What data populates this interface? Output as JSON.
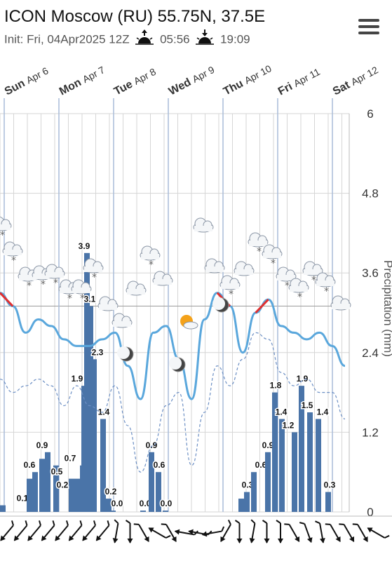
{
  "header": {
    "title": "ICON Moscow (RU) 55.75N, 37.5E",
    "init": "Init: Fri, 04Apr2025 12Z",
    "sunrise": "05:56",
    "sunset": "19:09",
    "sunrise_icon": "sunrise-icon",
    "sunset_icon": "sunset-icon",
    "menu_icon": "hamburger-menu-icon"
  },
  "colors": {
    "precip_bar": "#4a74a8",
    "temp_line": "#5aa7dc",
    "temp_warm": "#e03030",
    "dewpoint_line": "#6c8fc4",
    "grid": "#d6d6d6",
    "day_line": "#a9bcd8"
  },
  "chart_data": {
    "type": "bar",
    "days": [
      {
        "day": "Sun",
        "date": "Apr 6"
      },
      {
        "day": "Mon",
        "date": "Apr 7"
      },
      {
        "day": "Tue",
        "date": "Apr 8"
      },
      {
        "day": "Wed",
        "date": "Apr 9"
      },
      {
        "day": "Thu",
        "date": "Apr 10"
      },
      {
        "day": "Fri",
        "date": "Apr 11"
      },
      {
        "day": "Sat",
        "date": "Apr 12"
      }
    ],
    "ylabel": "Precipitation (mm)",
    "y_ticks": [
      "0",
      "1.2",
      "2.4",
      "3.6",
      "4.8",
      "6"
    ],
    "ylim": [
      0,
      6
    ],
    "precip": [
      {
        "label": "0.1",
        "values": [
          0.1
        ]
      },
      {
        "label": "0.6",
        "values": [
          0.5,
          0.6
        ]
      },
      {
        "label": "0.9",
        "values": [
          0.8,
          0.9
        ]
      },
      {
        "label": "0.7",
        "values": [
          0.7
        ]
      },
      {
        "label": "0.5",
        "values": [
          0.5
        ]
      },
      {
        "label": "0.2",
        "values": [
          0.3,
          0.2
        ]
      },
      {
        "label": "0.7",
        "values": [
          0.5,
          0.7
        ]
      },
      {
        "label": "1.9",
        "values": [
          1.9
        ]
      },
      {
        "label": "3.9",
        "values": [
          3.9
        ]
      },
      {
        "label": "3.1",
        "values": [
          3.1
        ]
      },
      {
        "label": "2.3",
        "values": [
          2.3
        ]
      },
      {
        "label": "1.4",
        "values": [
          1.4
        ]
      },
      {
        "label": "0.2",
        "values": [
          0.2
        ]
      },
      {
        "label": "0.0",
        "values": [
          0.02
        ]
      },
      {
        "label": "0.0",
        "values": [
          0.02
        ]
      },
      {
        "label": "0.9",
        "values": [
          0.9
        ]
      },
      {
        "label": "0.6",
        "values": [
          0.6
        ]
      },
      {
        "label": "0.0",
        "values": [
          0.02
        ]
      },
      {
        "label": "0.3",
        "values": [
          0.2,
          0.3
        ]
      },
      {
        "label": "0.6",
        "values": [
          0.6
        ]
      },
      {
        "label": "0.9",
        "values": [
          0.9
        ]
      },
      {
        "label": "1.8",
        "values": [
          1.8
        ]
      },
      {
        "label": "1.4",
        "values": [
          1.4
        ]
      },
      {
        "label": "1.2",
        "values": [
          1.2
        ]
      },
      {
        "label": "1.9",
        "values": [
          1.9
        ]
      },
      {
        "label": "1.5",
        "values": [
          1.5
        ]
      },
      {
        "label": "1.4",
        "values": [
          1.4
        ]
      },
      {
        "label": "0.3",
        "values": [
          0.3
        ]
      }
    ],
    "temperature_trend": [
      3.3,
      3.1,
      2.7,
      2.9,
      2.8,
      2.6,
      2.5,
      2.5,
      2.6,
      2.7,
      2.2,
      1.7,
      2.7,
      2.8,
      2.3,
      1.7,
      2.9,
      3.3,
      3.1,
      2.4,
      3.0,
      3.2,
      2.8,
      2.7,
      2.6,
      2.7,
      2.5,
      2.2
    ],
    "dewpoint_trend": [
      2.0,
      1.8,
      1.9,
      2.0,
      1.9,
      1.6,
      1.9,
      1.6,
      1.5,
      1.9,
      1.3,
      0.6,
      1.0,
      1.6,
      1.8,
      0.7,
      1.5,
      2.2,
      1.9,
      2.3,
      2.7,
      2.6,
      2.1,
      1.9,
      2.0,
      1.8,
      1.8,
      1.4
    ],
    "weather_icons": [
      "cloud-snow-icon",
      "cloud-icon",
      "moon-cloud-icon",
      "sun-cloud-icon",
      "moon-icon"
    ],
    "wind_directions": [
      40,
      40,
      40,
      40,
      40,
      40,
      40,
      40,
      10,
      0,
      330,
      120,
      330,
      100,
      100,
      80,
      30,
      0,
      10,
      0,
      0,
      330,
      340,
      350,
      330,
      330,
      330,
      120
    ],
    "grid": true
  }
}
